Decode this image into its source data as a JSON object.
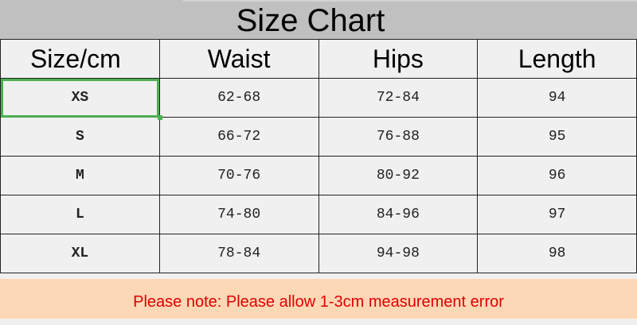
{
  "title": "Size Chart",
  "headers": [
    "Size/cm",
    "Waist",
    "Hips",
    "Length"
  ],
  "rows": [
    [
      "XS",
      "62-68",
      "72-84",
      "94"
    ],
    [
      "S",
      "66-72",
      "76-88",
      "95"
    ],
    [
      "M",
      "70-76",
      "80-92",
      "96"
    ],
    [
      "L",
      "74-80",
      "84-96",
      "97"
    ],
    [
      "XL",
      "78-84",
      "94-98",
      "98"
    ]
  ],
  "note": "Please note: Please allow 1-3cm measurement error",
  "colors": {
    "header_bg": "#c0c0c0",
    "cell_bg": "#f0f0f0",
    "note_bg": "#fcd8b6",
    "note_text": "#e00000",
    "selection": "#4caf50"
  }
}
